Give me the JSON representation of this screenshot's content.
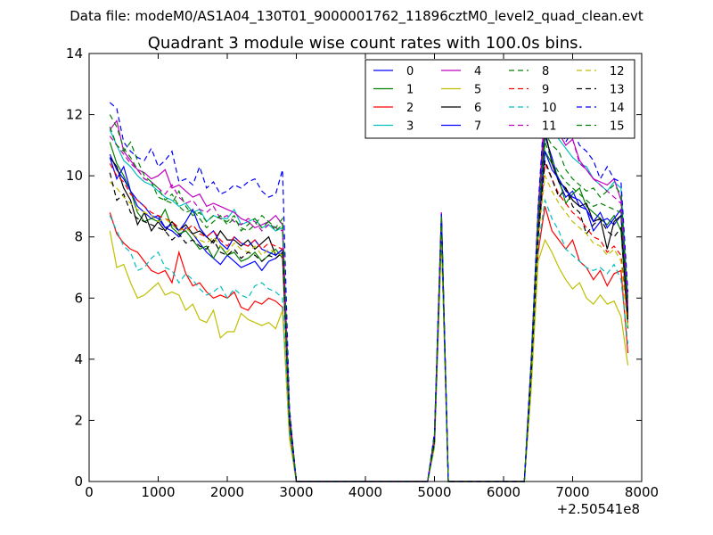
{
  "header": {
    "file_line": "Data file: modeM0/AS1A04_130T01_9000001762_11896cztM0_level2_quad_clean.evt"
  },
  "chart_data": {
    "type": "line",
    "title": "Quadrant 3 module wise count rates with 100.0s bins.",
    "xlabel": "",
    "ylabel": "",
    "x_offset_label": "+2.50541e8",
    "xlim": [
      0,
      8000
    ],
    "ylim": [
      0,
      14
    ],
    "xticks": [
      0,
      1000,
      2000,
      3000,
      4000,
      5000,
      6000,
      7000,
      8000
    ],
    "yticks": [
      0,
      2,
      4,
      6,
      8,
      10,
      12,
      14
    ],
    "grid": false,
    "legend_position": "top-right",
    "legend_columns": 4,
    "x": [
      300,
      400,
      500,
      600,
      700,
      800,
      900,
      1000,
      1100,
      1200,
      1300,
      1400,
      1500,
      1600,
      1700,
      1800,
      1900,
      2000,
      2100,
      2200,
      2300,
      2400,
      2500,
      2600,
      2700,
      2800,
      2900,
      3000,
      3100,
      4900,
      5000,
      5100,
      5200,
      5300,
      6300,
      6400,
      6500,
      6600,
      6700,
      6800,
      6900,
      7000,
      7100,
      7200,
      7300,
      7400,
      7500,
      7600,
      7700,
      7800
    ],
    "series": [
      {
        "name": "0",
        "color": "#0000ff",
        "style": "solid",
        "values": [
          10.7,
          10.2,
          9.9,
          9.5,
          9.0,
          8.8,
          8.6,
          8.7,
          8.3,
          8.2,
          8.0,
          8.3,
          8.1,
          7.8,
          7.5,
          7.3,
          7.1,
          7.4,
          7.2,
          7.0,
          7.1,
          7.2,
          6.9,
          7.2,
          7.3,
          7.5,
          2.0,
          0,
          0,
          0,
          1.3,
          8.6,
          0,
          0,
          0,
          3.5,
          8.0,
          11.3,
          10.6,
          9.8,
          9.3,
          9.5,
          9.0,
          8.9,
          8.2,
          8.5,
          8.6,
          8.4,
          8.7,
          5.5
        ]
      },
      {
        "name": "1",
        "color": "#008000",
        "style": "solid",
        "values": [
          11.1,
          10.4,
          10.0,
          9.5,
          8.8,
          8.5,
          8.6,
          8.5,
          8.9,
          8.3,
          8.1,
          8.2,
          7.9,
          7.6,
          7.7,
          7.3,
          7.7,
          7.4,
          7.5,
          7.2,
          7.3,
          7.5,
          7.2,
          7.4,
          7.6,
          7.3,
          1.9,
          0,
          0,
          0,
          1.4,
          8.6,
          0,
          0,
          0,
          3.6,
          8.1,
          10.8,
          10.4,
          9.9,
          9.1,
          9.4,
          9.6,
          9.0,
          8.8,
          8.6,
          8.4,
          8.7,
          8.2,
          5.0
        ]
      },
      {
        "name": "2",
        "color": "#ff0000",
        "style": "solid",
        "values": [
          8.8,
          8.1,
          7.8,
          7.6,
          7.5,
          7.2,
          6.9,
          6.8,
          6.9,
          6.5,
          7.5,
          6.8,
          6.4,
          6.5,
          6.2,
          6.0,
          6.1,
          6.0,
          6.2,
          5.7,
          5.6,
          5.9,
          5.8,
          6.0,
          5.9,
          5.7,
          1.5,
          0,
          0,
          0,
          1.2,
          8.0,
          0,
          0,
          0,
          3.2,
          7.5,
          9.0,
          8.2,
          7.9,
          7.6,
          7.9,
          7.2,
          7.0,
          6.6,
          6.9,
          6.4,
          6.8,
          6.9,
          4.2
        ]
      },
      {
        "name": "3",
        "color": "#00bfbf",
        "style": "solid",
        "values": [
          11.5,
          11.0,
          10.5,
          10.3,
          10.0,
          9.8,
          9.7,
          9.5,
          9.3,
          9.2,
          9.0,
          9.1,
          8.8,
          8.9,
          8.5,
          8.7,
          8.6,
          8.6,
          8.9,
          8.4,
          8.5,
          8.6,
          8.3,
          8.4,
          8.2,
          8.3,
          2.2,
          0,
          0,
          0,
          1.5,
          8.7,
          0,
          0,
          0,
          3.8,
          8.6,
          11.5,
          11.5,
          11.2,
          10.9,
          10.6,
          10.4,
          10.3,
          9.9,
          9.7,
          9.5,
          9.8,
          9.6,
          5.8
        ]
      },
      {
        "name": "4",
        "color": "#bf00bf",
        "style": "solid",
        "values": [
          11.5,
          11.8,
          10.8,
          10.5,
          10.2,
          10.1,
          9.9,
          10.0,
          10.2,
          9.6,
          9.7,
          9.5,
          9.3,
          9.4,
          9.0,
          9.1,
          9.0,
          8.9,
          8.8,
          8.6,
          8.5,
          8.3,
          8.4,
          8.5,
          8.7,
          8.4,
          2.3,
          0,
          0,
          0,
          1.5,
          8.8,
          0,
          0,
          0,
          3.9,
          8.8,
          11.9,
          11.7,
          11.4,
          11.0,
          11.2,
          10.5,
          10.2,
          9.9,
          9.8,
          9.7,
          9.9,
          9.2,
          6.0
        ]
      },
      {
        "name": "5",
        "color": "#bfbf00",
        "style": "solid",
        "values": [
          8.2,
          7.0,
          7.1,
          6.5,
          6.0,
          6.1,
          6.3,
          6.5,
          6.1,
          6.2,
          6.1,
          5.6,
          5.8,
          5.3,
          5.2,
          5.6,
          4.7,
          4.9,
          4.9,
          5.5,
          5.3,
          5.2,
          5.1,
          5.2,
          5.0,
          5.6,
          1.4,
          0,
          0,
          0,
          1.1,
          7.9,
          0,
          0,
          0,
          3.0,
          7.2,
          7.9,
          7.5,
          7.0,
          6.6,
          6.3,
          6.5,
          6.0,
          5.8,
          6.1,
          5.8,
          5.9,
          5.4,
          3.8
        ]
      },
      {
        "name": "6",
        "color": "#000000",
        "style": "solid",
        "values": [
          10.6,
          10.3,
          9.6,
          9.2,
          8.4,
          8.8,
          8.2,
          8.5,
          8.2,
          8.5,
          8.2,
          8.4,
          8.1,
          8.2,
          8.0,
          7.8,
          8.2,
          7.9,
          7.9,
          7.7,
          7.9,
          7.6,
          7.8,
          8.0,
          7.4,
          7.6,
          2.0,
          0,
          0,
          0,
          1.3,
          8.6,
          0,
          0,
          0,
          3.5,
          8.3,
          11.5,
          10.4,
          9.8,
          9.6,
          9.2,
          9.0,
          9.1,
          8.5,
          8.6,
          7.6,
          8.5,
          8.7,
          5.4
        ]
      },
      {
        "name": "7",
        "color": "#0000ff",
        "style": "solid",
        "values": [
          10.6,
          9.9,
          10.3,
          9.5,
          9.2,
          9.0,
          8.7,
          8.6,
          8.3,
          8.4,
          8.2,
          8.5,
          8.9,
          8.3,
          8.0,
          8.2,
          7.8,
          7.6,
          8.0,
          7.8,
          7.7,
          7.9,
          7.6,
          7.5,
          7.4,
          7.6,
          2.0,
          0,
          0,
          0,
          1.3,
          8.6,
          0,
          0,
          0,
          3.6,
          8.1,
          10.8,
          10.2,
          9.9,
          9.5,
          9.3,
          9.2,
          8.9,
          8.5,
          8.8,
          8.3,
          8.6,
          8.9,
          5.6
        ]
      },
      {
        "name": "8",
        "color": "#008000",
        "style": "dashed",
        "values": [
          12.0,
          11.6,
          10.9,
          10.6,
          10.2,
          9.9,
          9.8,
          9.3,
          9.2,
          9.1,
          9.5,
          9.0,
          8.7,
          8.8,
          8.5,
          8.7,
          8.6,
          8.5,
          8.7,
          8.2,
          8.4,
          8.6,
          8.3,
          8.5,
          8.2,
          8.4,
          2.2,
          0,
          0,
          0,
          1.5,
          8.7,
          0,
          0,
          0,
          3.8,
          8.5,
          11.1,
          10.5,
          10.1,
          9.8,
          9.6,
          9.4,
          9.2,
          9.0,
          9.1,
          9.0,
          8.9,
          8.8,
          5.8
        ]
      },
      {
        "name": "9",
        "color": "#ff0000",
        "style": "dashed",
        "values": [
          10.4,
          10.0,
          9.8,
          9.4,
          9.2,
          9.0,
          8.8,
          8.7,
          8.6,
          8.5,
          8.3,
          8.2,
          8.4,
          8.1,
          8.0,
          8.2,
          7.9,
          7.7,
          8.0,
          7.8,
          7.7,
          7.9,
          7.6,
          7.8,
          7.7,
          7.6,
          2.0,
          0,
          0,
          0,
          1.3,
          8.5,
          0,
          0,
          0,
          3.5,
          8.0,
          10.4,
          9.9,
          9.4,
          9.1,
          8.8,
          8.6,
          8.3,
          8.0,
          7.9,
          7.5,
          7.7,
          7.4,
          5.2
        ]
      },
      {
        "name": "10",
        "color": "#00bfbf",
        "style": "dashed",
        "values": [
          8.7,
          8.2,
          7.7,
          7.5,
          6.9,
          7.0,
          7.3,
          7.5,
          7.0,
          6.9,
          6.5,
          6.8,
          6.6,
          6.3,
          6.1,
          6.2,
          6.4,
          6.0,
          6.3,
          6.1,
          6.0,
          6.4,
          6.5,
          6.3,
          6.2,
          6.0,
          1.6,
          0,
          0,
          0,
          1.2,
          8.1,
          0,
          0,
          0,
          3.3,
          7.7,
          9.2,
          8.6,
          8.2,
          7.6,
          7.4,
          7.2,
          7.0,
          6.9,
          7.0,
          6.8,
          7.1,
          6.6,
          4.5
        ]
      },
      {
        "name": "11",
        "color": "#bf00bf",
        "style": "dashed",
        "values": [
          11.3,
          11.0,
          10.7,
          10.4,
          10.2,
          9.9,
          9.8,
          9.6,
          9.4,
          9.7,
          9.3,
          9.1,
          9.2,
          8.9,
          8.8,
          9.0,
          8.6,
          8.7,
          8.5,
          8.4,
          8.6,
          8.5,
          8.2,
          8.4,
          8.3,
          8.2,
          2.2,
          0,
          0,
          0,
          1.5,
          8.8,
          0,
          0,
          0,
          3.9,
          8.9,
          12.3,
          11.6,
          11.3,
          11.4,
          11.2,
          10.4,
          10.2,
          9.9,
          9.7,
          9.5,
          9.3,
          9.1,
          5.7
        ]
      },
      {
        "name": "12",
        "color": "#bfbf00",
        "style": "dashed",
        "values": [
          9.8,
          9.6,
          9.3,
          9.1,
          8.9,
          8.8,
          8.7,
          8.5,
          8.6,
          8.4,
          8.2,
          8.3,
          8.1,
          7.9,
          7.8,
          8.0,
          7.7,
          7.5,
          7.8,
          7.6,
          7.5,
          7.7,
          7.4,
          7.6,
          7.5,
          7.4,
          1.9,
          0,
          0,
          0,
          1.3,
          8.4,
          0,
          0,
          0,
          3.4,
          7.9,
          10.0,
          9.5,
          9.1,
          8.8,
          8.5,
          8.3,
          8.1,
          7.8,
          7.7,
          7.4,
          7.6,
          7.2,
          5.0
        ]
      },
      {
        "name": "13",
        "color": "#000000",
        "style": "dashed",
        "values": [
          10.1,
          9.2,
          9.4,
          8.8,
          8.6,
          8.5,
          8.4,
          8.3,
          8.2,
          7.9,
          8.1,
          7.8,
          7.9,
          7.7,
          7.6,
          7.9,
          7.5,
          7.4,
          7.6,
          7.3,
          7.5,
          7.4,
          7.2,
          7.4,
          7.3,
          7.5,
          1.9,
          0,
          0,
          0,
          1.3,
          8.5,
          0,
          0,
          0,
          3.5,
          8.0,
          10.5,
          9.9,
          9.3,
          9.6,
          9.0,
          8.8,
          8.1,
          8.4,
          8.6,
          8.2,
          8.0,
          8.3,
          5.3
        ]
      },
      {
        "name": "14",
        "color": "#0000ff",
        "style": "dashed",
        "values": [
          12.4,
          12.2,
          11.1,
          10.8,
          10.6,
          10.5,
          10.9,
          10.3,
          10.5,
          10.8,
          9.8,
          9.9,
          9.7,
          10.3,
          9.6,
          9.8,
          9.4,
          9.5,
          9.7,
          9.6,
          9.8,
          9.9,
          9.5,
          9.3,
          9.4,
          10.2,
          2.4,
          0,
          0,
          0,
          1.6,
          8.8,
          0,
          0,
          0,
          4.0,
          9.0,
          12.5,
          11.8,
          11.7,
          11.1,
          11.5,
          11.0,
          10.8,
          10.5,
          9.9,
          10.3,
          9.9,
          9.8,
          6.2
        ]
      },
      {
        "name": "15",
        "color": "#008000",
        "style": "dashed",
        "values": [
          11.6,
          11.0,
          10.8,
          11.1,
          10.5,
          10.0,
          9.8,
          9.6,
          9.2,
          9.4,
          9.0,
          8.8,
          8.9,
          8.6,
          8.3,
          8.5,
          8.7,
          8.4,
          8.6,
          8.3,
          8.2,
          8.4,
          8.7,
          8.5,
          8.3,
          8.6,
          2.2,
          0,
          0,
          0,
          1.5,
          8.7,
          0,
          0,
          0,
          3.8,
          8.6,
          11.4,
          11.0,
          10.8,
          10.2,
          9.9,
          9.7,
          9.5,
          9.6,
          9.3,
          9.5,
          9.7,
          9.4,
          5.9
        ]
      }
    ]
  }
}
